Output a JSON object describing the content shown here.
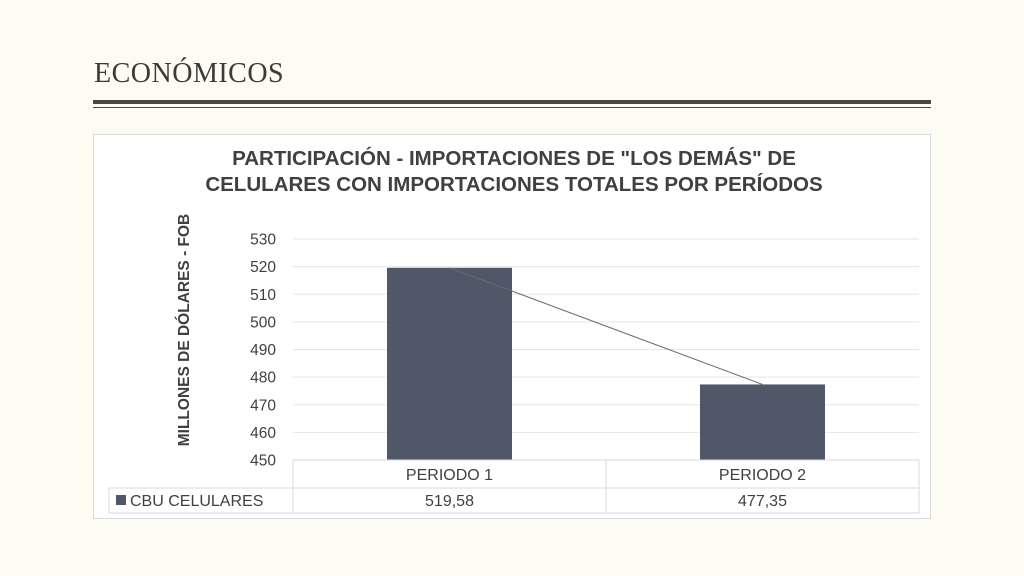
{
  "slide": {
    "title": "ECONÓMICOS"
  },
  "chart_data": {
    "type": "bar",
    "title": "PARTICIPACIÓN - IMPORTACIONES DE \"LOS DEMÁS\" DE CELULARES CON IMPORTACIONES TOTALES POR PERÍODOS",
    "ylabel": "MILLONES DE DÓLARES - FOB",
    "xlabel": "",
    "categories": [
      "PERIODO 1",
      "PERIODO 2"
    ],
    "series": [
      {
        "name": "CBU CELULARES",
        "values": [
          519.58,
          477.35
        ],
        "labels": [
          "519,58",
          "477,35"
        ],
        "color": "#505768"
      }
    ],
    "ylim": [
      450,
      530
    ],
    "yticks": [
      450,
      460,
      470,
      480,
      490,
      500,
      510,
      520,
      530
    ],
    "grid": true,
    "trendline": true,
    "data_table": true,
    "colors": {
      "bar": "#505768",
      "grid": "#e6e6e6",
      "text": "#404040",
      "table_border": "#d9d9d9"
    }
  }
}
